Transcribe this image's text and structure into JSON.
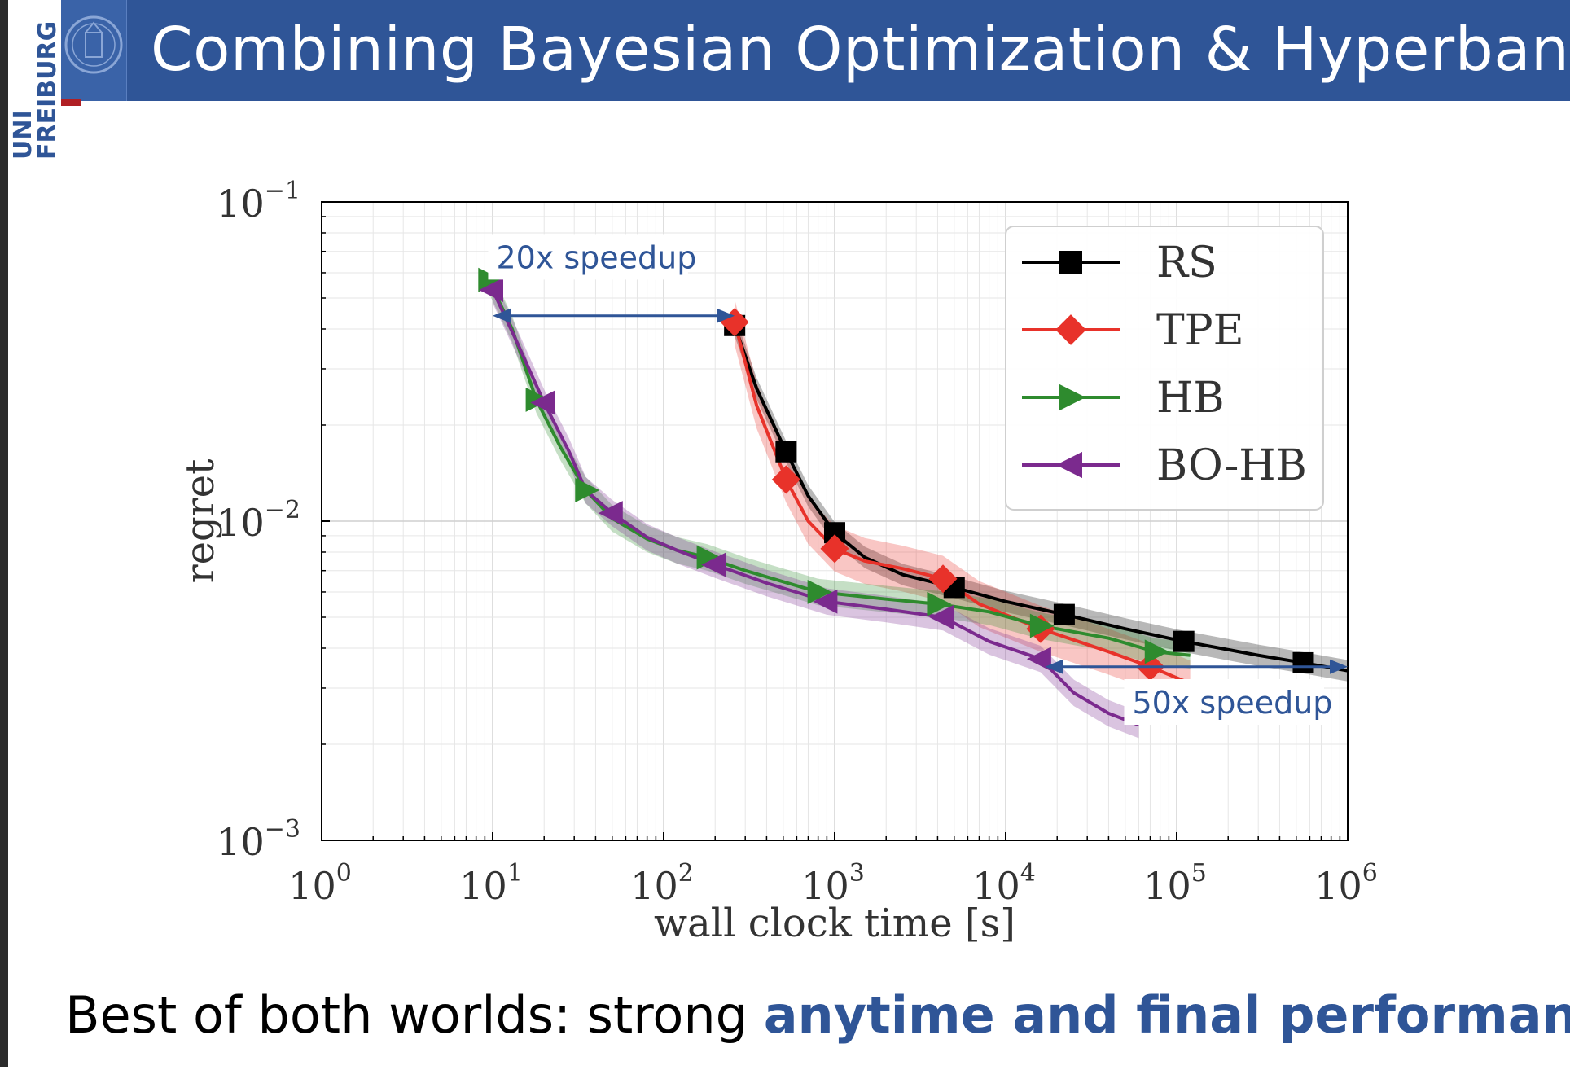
{
  "slide": {
    "title": "Combining Bayesian Optimization & Hyperband",
    "logo": {
      "line1": "UNI",
      "line2": "FREIBURG"
    },
    "caption_prefix": "Best of both worlds: strong ",
    "caption_highlight": "anytime and final performance",
    "colors": {
      "header": "#2f5597",
      "accent": "#2f5597",
      "logo_red": "#b01f24"
    }
  },
  "chart_data": {
    "type": "line",
    "xscale": "log",
    "yscale": "log",
    "xlim": [
      1,
      1000000
    ],
    "ylim": [
      0.001,
      0.1
    ],
    "xlabel": "wall clock time [s]",
    "ylabel": "regret",
    "x_ticks": [
      {
        "value": 1,
        "base": "10",
        "exp": "0"
      },
      {
        "value": 10,
        "base": "10",
        "exp": "1"
      },
      {
        "value": 100,
        "base": "10",
        "exp": "2"
      },
      {
        "value": 1000,
        "base": "10",
        "exp": "3"
      },
      {
        "value": 10000,
        "base": "10",
        "exp": "4"
      },
      {
        "value": 100000,
        "base": "10",
        "exp": "5"
      },
      {
        "value": 1000000,
        "base": "10",
        "exp": "6"
      }
    ],
    "y_ticks": [
      {
        "value": 0.1,
        "base": "10",
        "exp": "−1"
      },
      {
        "value": 0.01,
        "base": "10",
        "exp": "−2"
      },
      {
        "value": 0.001,
        "base": "10",
        "exp": "−3"
      }
    ],
    "grid": true,
    "legend_position": "top-right",
    "series": [
      {
        "name": "RS",
        "color": "#000000",
        "marker": "square",
        "x": [
          260,
          350,
          520,
          700,
          1000,
          1500,
          2500,
          5000,
          10000,
          22000,
          50000,
          110000,
          300000,
          550000,
          1000000
        ],
        "y": [
          0.041,
          0.026,
          0.0165,
          0.012,
          0.0092,
          0.0077,
          0.0068,
          0.0062,
          0.0056,
          0.0051,
          0.0046,
          0.0042,
          0.0038,
          0.0036,
          0.0034
        ],
        "markers_x": [
          260,
          520,
          1000,
          5000,
          22000,
          110000,
          550000
        ],
        "markers_y": [
          0.041,
          0.0165,
          0.0092,
          0.0062,
          0.0051,
          0.0042,
          0.0036
        ],
        "band": 0.08
      },
      {
        "name": "TPE",
        "color": "#e8322a",
        "marker": "diamond",
        "x": [
          260,
          350,
          520,
          700,
          1000,
          1500,
          2500,
          4300,
          7000,
          16000,
          40000,
          70000,
          120000
        ],
        "y": [
          0.042,
          0.023,
          0.0135,
          0.01,
          0.0082,
          0.0075,
          0.0071,
          0.0066,
          0.0055,
          0.0046,
          0.0039,
          0.0035,
          0.0031
        ],
        "markers_x": [
          260,
          520,
          1000,
          4300,
          16000,
          70000
        ],
        "markers_y": [
          0.042,
          0.0135,
          0.0082,
          0.0066,
          0.0046,
          0.0035
        ],
        "band": 0.18
      },
      {
        "name": "HB",
        "color": "#2e8b2e",
        "marker": "triangle-right",
        "x": [
          9.5,
          13,
          18,
          25,
          35,
          50,
          80,
          120,
          180,
          300,
          800,
          2000,
          4000,
          8000,
          16000,
          40000,
          75000,
          120000
        ],
        "y": [
          0.057,
          0.04,
          0.024,
          0.017,
          0.0125,
          0.0102,
          0.0088,
          0.0081,
          0.0077,
          0.007,
          0.006,
          0.0057,
          0.0055,
          0.0052,
          0.0047,
          0.0043,
          0.0039,
          0.0038
        ],
        "markers_x": [
          9.5,
          18,
          35,
          180,
          800,
          4000,
          16000,
          75000
        ],
        "markers_y": [
          0.057,
          0.024,
          0.0125,
          0.0077,
          0.006,
          0.0055,
          0.0047,
          0.0039
        ],
        "band": 0.1
      },
      {
        "name": "BO-HB",
        "color": "#7b2a8e",
        "marker": "triangle-left",
        "x": [
          10,
          14,
          20,
          28,
          35,
          50,
          80,
          120,
          200,
          400,
          900,
          2000,
          4300,
          8000,
          16000,
          25000,
          40000,
          60000
        ],
        "y": [
          0.053,
          0.036,
          0.0235,
          0.0165,
          0.0125,
          0.0106,
          0.0089,
          0.0081,
          0.0073,
          0.0064,
          0.0056,
          0.0053,
          0.005,
          0.0042,
          0.0037,
          0.0029,
          0.0025,
          0.0023
        ],
        "markers_x": [
          10,
          20,
          50,
          200,
          900,
          4300,
          16000
        ],
        "markers_y": [
          0.053,
          0.0235,
          0.0106,
          0.0073,
          0.0056,
          0.005,
          0.0037
        ],
        "band": 0.1
      }
    ],
    "annotations": [
      {
        "text": "20x speedup",
        "x1": 10,
        "x2": 260,
        "y": 0.044,
        "label_x": 10.5,
        "label_y": 0.062
      },
      {
        "text": "50x speedup",
        "x1": 17000,
        "x2": 1000000,
        "y": 0.0035,
        "label_x": 55000,
        "label_y": 0.0025
      }
    ]
  }
}
